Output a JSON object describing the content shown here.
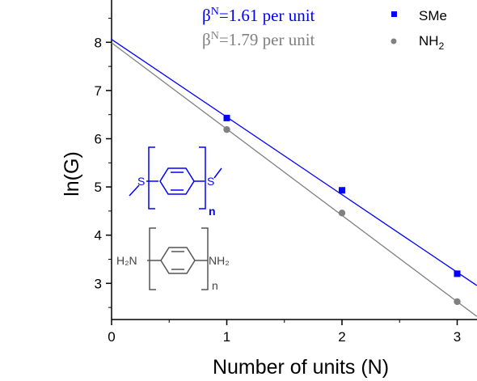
{
  "chart_data": {
    "type": "scatter",
    "xlabel": "Number of units (N)",
    "ylabel": "ln(G)",
    "xlim": [
      0,
      3.17
    ],
    "ylim": [
      2.25,
      8.75
    ],
    "x_ticks": [
      0,
      1,
      2,
      3
    ],
    "y_ticks": [
      3,
      4,
      5,
      6,
      7,
      8
    ],
    "grid": false,
    "legend_position": "top-right",
    "series": [
      {
        "name": "SMe",
        "beta_prefix": "β",
        "beta_sup": "N",
        "beta_text": "=1.61  per unit",
        "color": "#0000ff",
        "marker": "square",
        "x": [
          1,
          2,
          3
        ],
        "y": [
          6.43,
          4.93,
          3.2
        ],
        "fit": {
          "intercept": 8.06,
          "slope": -1.61
        }
      },
      {
        "name_main": "NH",
        "name_sub": "2",
        "beta_prefix": "β",
        "beta_sup": "N",
        "beta_text": "=1.79  per unit",
        "color": "#808080",
        "marker": "circle",
        "x": [
          1,
          2,
          3
        ],
        "y": [
          6.19,
          4.46,
          2.62
        ],
        "fit": {
          "intercept": 7.99,
          "slope": -1.79
        }
      }
    ],
    "molecules": {
      "sme": {
        "left_atom": "S",
        "right_atom": "S",
        "repeat": "n"
      },
      "nh2": {
        "left_atom": "H₂N",
        "right_atom": "NH₂",
        "repeat": "n"
      }
    }
  }
}
